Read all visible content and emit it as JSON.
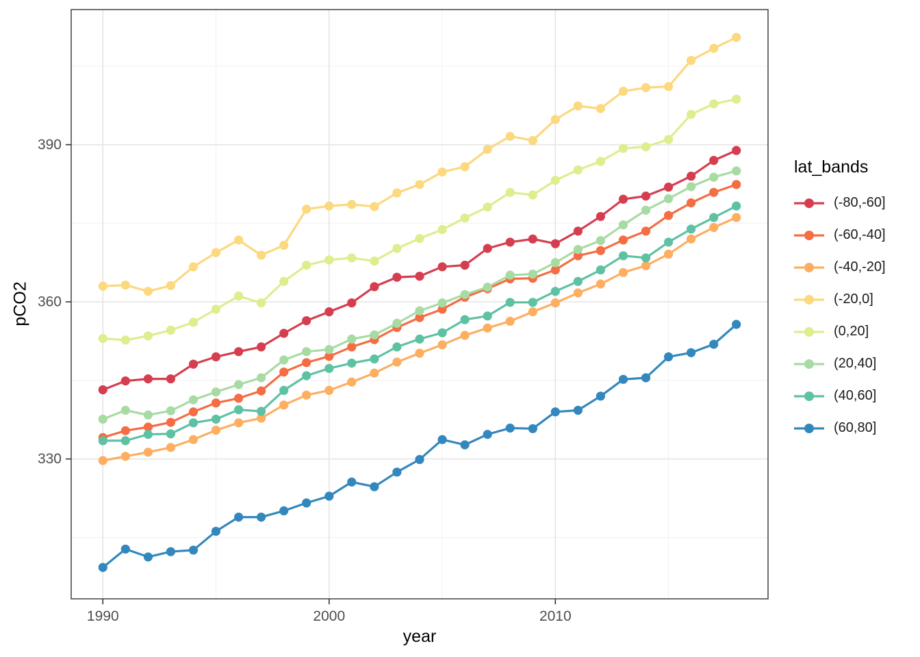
{
  "axis": {
    "x_title": "year",
    "y_title": "pCO2"
  },
  "legend": {
    "title": "lat_bands",
    "position": "right"
  },
  "colors": {
    "background": "#ffffff",
    "grid_major": "#e3e3e3",
    "grid_minor": "#f0f0f0",
    "panel_border": "#333333",
    "tick_mark": "#333333",
    "tick_label": "#4d4d4d",
    "axis_title": "#000000"
  },
  "chart_data": {
    "type": "line",
    "title": "",
    "xlabel": "year",
    "ylabel": "pCO2",
    "legend_title": "lat_bands",
    "legend_position": "right",
    "grid": true,
    "xlim": [
      1988.6,
      2019.4
    ],
    "ylim": [
      303.3,
      415.8
    ],
    "x_ticks_major": [
      1990,
      2000,
      2010
    ],
    "x_ticks_minor": [
      1995,
      2005,
      2015
    ],
    "y_ticks_major": [
      330,
      360,
      390
    ],
    "y_ticks_minor": [
      315,
      345,
      375,
      405
    ],
    "x": [
      1990,
      1991,
      1992,
      1993,
      1994,
      1995,
      1996,
      1997,
      1998,
      1999,
      2000,
      2001,
      2002,
      2003,
      2004,
      2005,
      2006,
      2007,
      2008,
      2009,
      2010,
      2011,
      2012,
      2013,
      2014,
      2015,
      2016,
      2017,
      2018
    ],
    "series": [
      {
        "name": "(-80,-60]",
        "color": "#d53e4f",
        "values": [
          343.2,
          344.9,
          345.3,
          345.3,
          348.1,
          349.5,
          350.5,
          351.4,
          354.0,
          356.4,
          358.1,
          359.8,
          362.9,
          364.7,
          364.9,
          366.7,
          367.0,
          370.2,
          371.4,
          372.0,
          371.1,
          373.5,
          376.3,
          379.6,
          380.2,
          381.9,
          384.0,
          387.0,
          388.9
        ]
      },
      {
        "name": "(-60,-40]",
        "color": "#f46d43",
        "values": [
          334.1,
          335.4,
          336.1,
          337.0,
          339.0,
          340.7,
          341.6,
          343.0,
          346.6,
          348.4,
          349.6,
          351.4,
          352.8,
          355.1,
          357.0,
          358.6,
          360.9,
          362.5,
          364.4,
          364.5,
          366.1,
          368.8,
          369.8,
          371.8,
          373.5,
          376.5,
          378.9,
          380.9,
          382.4
        ]
      },
      {
        "name": "(-40,-20]",
        "color": "#fdae61",
        "values": [
          329.7,
          330.5,
          331.3,
          332.2,
          333.7,
          335.5,
          336.9,
          337.8,
          340.3,
          342.2,
          343.1,
          344.7,
          346.4,
          348.5,
          350.2,
          351.8,
          353.6,
          355.0,
          356.3,
          358.1,
          359.8,
          361.7,
          363.4,
          365.6,
          366.9,
          369.1,
          372.0,
          374.2,
          376.1
        ]
      },
      {
        "name": "(-20,0]",
        "color": "#fcd87f",
        "values": [
          363.0,
          363.2,
          362.0,
          363.1,
          366.7,
          369.4,
          371.8,
          368.9,
          370.8,
          377.7,
          378.3,
          378.6,
          378.2,
          380.8,
          382.4,
          384.8,
          385.8,
          389.1,
          391.6,
          390.8,
          394.8,
          397.4,
          396.9,
          400.2,
          400.9,
          401.1,
          406.1,
          408.4,
          410.5
        ]
      },
      {
        "name": "(0,20]",
        "color": "#dcee8d",
        "values": [
          353.0,
          352.7,
          353.5,
          354.6,
          356.1,
          358.6,
          361.1,
          359.8,
          363.9,
          367.0,
          368.0,
          368.4,
          367.8,
          370.2,
          372.1,
          373.8,
          376.0,
          378.1,
          380.9,
          380.4,
          383.2,
          385.2,
          386.8,
          389.3,
          389.6,
          391.0,
          395.8,
          397.8,
          398.7
        ]
      },
      {
        "name": "(20,40]",
        "color": "#a8dba4",
        "values": [
          337.6,
          339.3,
          338.4,
          339.2,
          341.3,
          342.8,
          344.2,
          345.5,
          348.9,
          350.5,
          350.9,
          352.9,
          353.7,
          355.9,
          358.3,
          359.8,
          361.4,
          362.8,
          365.1,
          365.3,
          367.5,
          370.0,
          371.7,
          374.7,
          377.5,
          379.7,
          382.0,
          383.8,
          385.0
        ]
      },
      {
        "name": "(40,60]",
        "color": "#5ec1a3",
        "values": [
          333.5,
          333.5,
          334.7,
          334.8,
          336.9,
          337.6,
          339.4,
          339.1,
          343.1,
          345.9,
          347.3,
          348.3,
          349.1,
          351.4,
          352.9,
          354.1,
          356.6,
          357.3,
          359.9,
          359.9,
          362.0,
          363.9,
          366.1,
          368.8,
          368.4,
          371.4,
          373.9,
          376.1,
          378.3
        ]
      },
      {
        "name": "(60,80]",
        "color": "#3288bd",
        "values": [
          309.3,
          312.8,
          311.3,
          312.3,
          312.6,
          316.2,
          318.9,
          318.9,
          320.1,
          321.6,
          322.9,
          325.6,
          324.7,
          327.5,
          329.9,
          333.7,
          332.7,
          334.7,
          335.9,
          335.8,
          339.0,
          339.3,
          342.0,
          345.2,
          345.5,
          349.5,
          350.3,
          351.9,
          355.7
        ]
      }
    ]
  }
}
